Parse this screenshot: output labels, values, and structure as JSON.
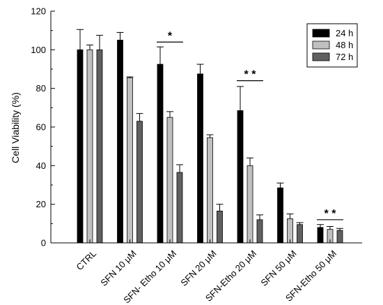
{
  "chart_data": {
    "type": "bar",
    "title": "",
    "xlabel": "",
    "ylabel": "Cell Viability (%)",
    "ylim": [
      0,
      120
    ],
    "yticks": [
      0,
      20,
      40,
      60,
      80,
      100,
      120
    ],
    "grid": false,
    "legend_position": "top-right",
    "categories": [
      "CTRL",
      "SFN 10 μM",
      "SFN- Etho 10 μM",
      "SFN 20 μM",
      "SFN-Etho 20 μM",
      "SFN 50 μM",
      "SFN-Etho 50 μM"
    ],
    "series": [
      {
        "name": "24 h",
        "color": "#000000",
        "values": [
          100,
          105,
          92.5,
          87.5,
          68.5,
          28.5,
          8
        ],
        "errors": [
          10.5,
          4,
          9,
          5,
          12.5,
          2.5,
          1.5
        ]
      },
      {
        "name": "48 h",
        "color": "#c0c0c0",
        "values": [
          100,
          85.5,
          65,
          54.5,
          40,
          12.5,
          7
        ],
        "errors": [
          2.5,
          0.5,
          3,
          1.5,
          4,
          2.5,
          1.5
        ]
      },
      {
        "name": "72 h",
        "color": "#606060",
        "values": [
          100,
          63,
          36.5,
          16.5,
          12,
          9.5,
          6.5
        ],
        "errors": [
          7.5,
          4,
          4,
          3.5,
          2.5,
          1,
          1
        ]
      }
    ],
    "annotations": [
      {
        "text": "*",
        "category_index": 2,
        "y": 104
      },
      {
        "text": "* *",
        "category_index": 4,
        "y": 84
      },
      {
        "text": "* *",
        "category_index": 6,
        "y": 12
      }
    ]
  }
}
